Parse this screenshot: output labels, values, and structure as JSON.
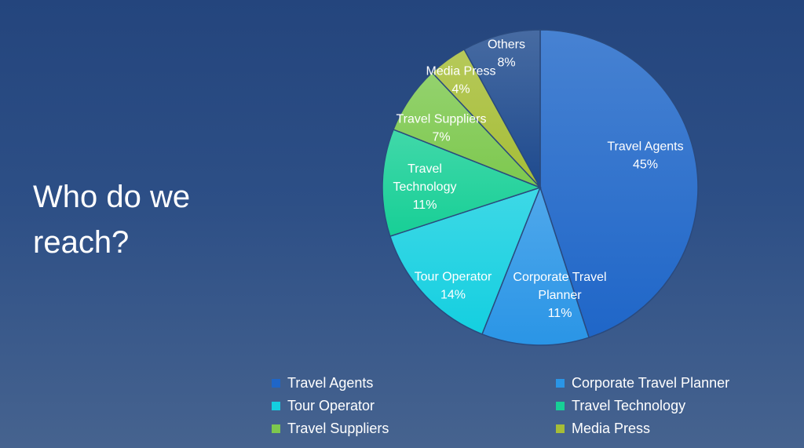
{
  "slide": {
    "title": "Who do we reach?"
  },
  "chart_data": {
    "type": "pie",
    "categories": [
      "Travel Agents",
      "Corporate Travel Planner",
      "Tour Operator",
      "Travel Technology",
      "Travel Suppliers",
      "Media Press",
      "Others"
    ],
    "values": [
      45,
      11,
      14,
      11,
      7,
      4,
      8
    ],
    "data_labels": [
      [
        "Travel Agents",
        "45%"
      ],
      [
        "Corporate Travel",
        "Planner",
        "11%"
      ],
      [
        "Tour Operator",
        "14%"
      ],
      [
        "Travel",
        "Technology",
        "11%"
      ],
      [
        "Travel Suppliers",
        "7%"
      ],
      [
        "Media Press",
        "4%"
      ],
      [
        "Others",
        "8%"
      ]
    ],
    "colors": [
      "#1f66c8",
      "#2a95e6",
      "#14cfe0",
      "#17cf96",
      "#7dc84e",
      "#a6bd36",
      "#1e4a8e"
    ],
    "legend": {
      "position": "bottom",
      "entries": [
        "Travel Agents",
        "Corporate Travel Planner",
        "Tour Operator",
        "Travel Technology",
        "Travel Suppliers",
        "Media Press"
      ]
    }
  }
}
